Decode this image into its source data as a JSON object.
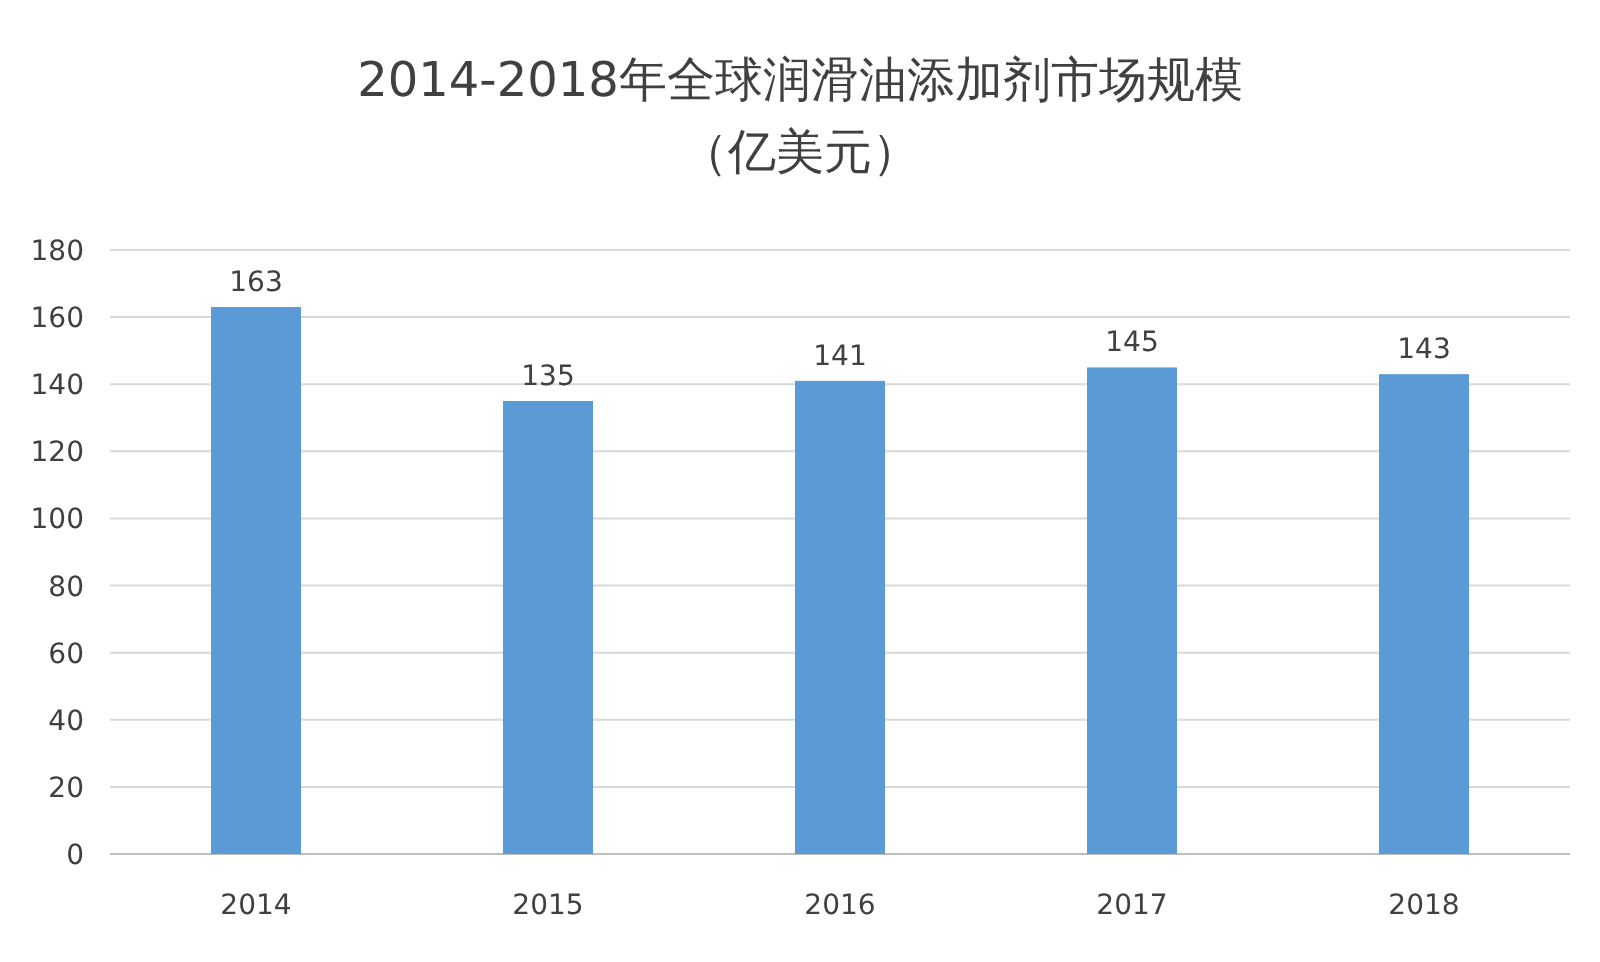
{
  "chart_data": {
    "type": "bar",
    "title": "2014-2018年全球润滑油添加剂市场规模",
    "subtitle": "（亿美元）",
    "categories": [
      "2014",
      "2015",
      "2016",
      "2017",
      "2018"
    ],
    "values": [
      163,
      135,
      141,
      145,
      143
    ],
    "color": "#5b9bd5",
    "ylim": [
      0,
      180
    ],
    "yticks": [
      0,
      20,
      40,
      60,
      80,
      100,
      120,
      140,
      160,
      180
    ],
    "grid": "y",
    "data_labels": true
  }
}
